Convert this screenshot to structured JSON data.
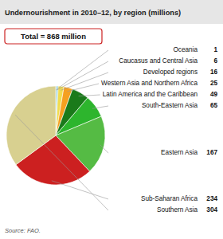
{
  "chart_data": {
    "type": "pie",
    "title": "Undernourishment in 2010–12, by region (millions)",
    "categories": [
      "Oceania",
      "Caucasus and Central Asia",
      "Developed regions",
      "Western Asia and Northern Africa",
      "Latin America and the Caribbean",
      "South-Eastern Asia",
      "Eastern Asia",
      "Sub-Saharan Africa",
      "Southern Asia"
    ],
    "values": [
      1,
      6,
      16,
      25,
      49,
      65,
      167,
      234,
      304
    ],
    "colors": [
      "#5cb8d4",
      "#90ccd8",
      "#f0dc50",
      "#f5a020",
      "#1a7a1a",
      "#2db52d",
      "#55bb44",
      "#cc2020",
      "#d8d090"
    ],
    "data_labels": true,
    "annotations": [
      "Total = 868 million",
      "Source: FAO."
    ]
  }
}
